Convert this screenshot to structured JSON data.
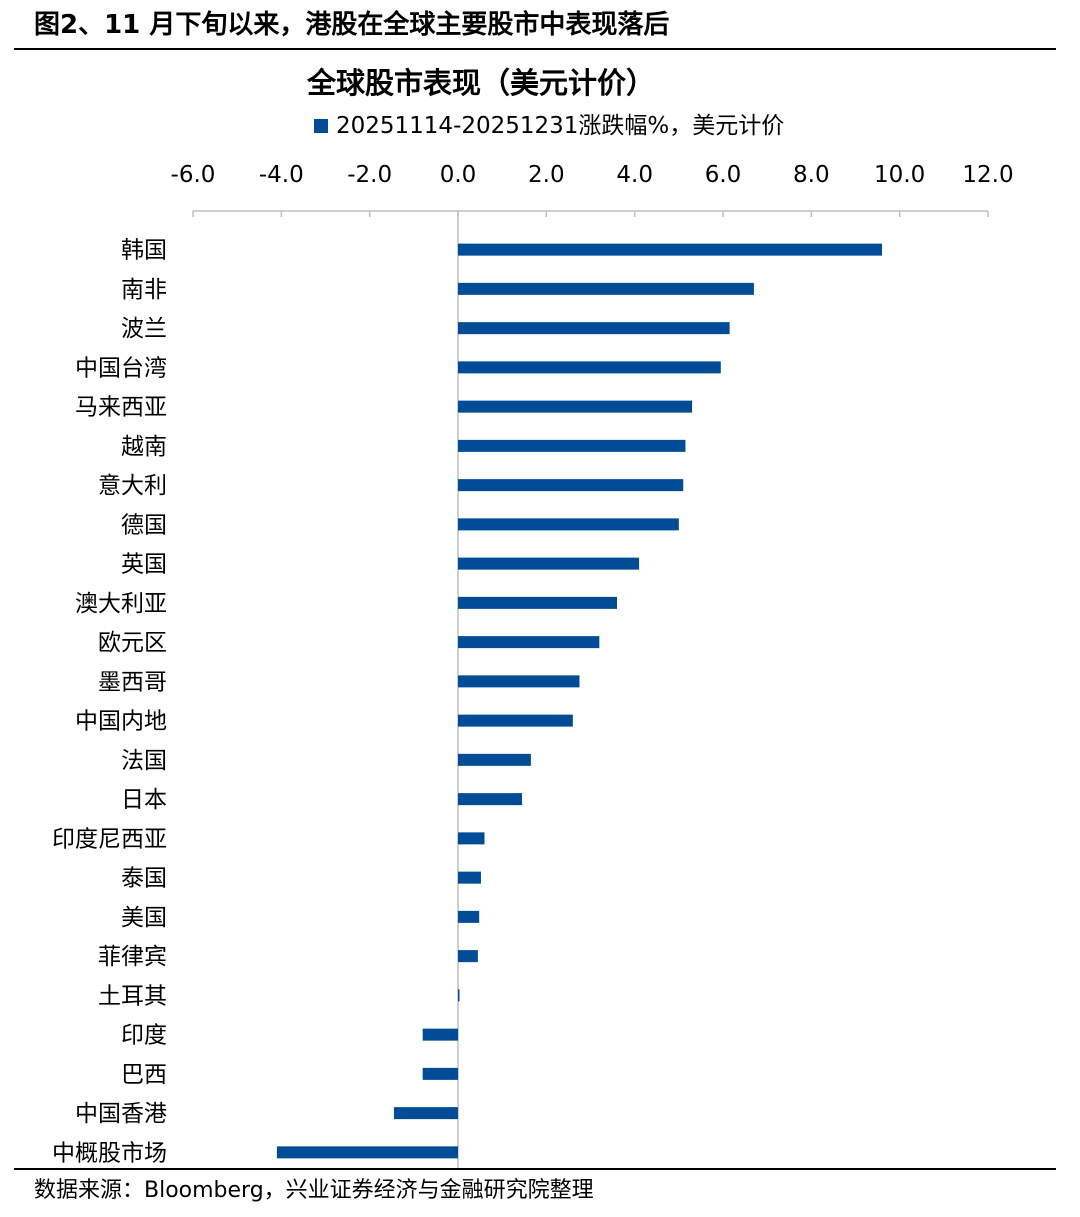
{
  "figure_title": "图2、11 月下旬以来，港股在全球主要股市中表现落后",
  "source_text": "数据来源：Bloomberg，兴业证券经济与金融研究院整理",
  "colors": {
    "bar": "#004C97",
    "axis": "#BFBFBF",
    "text": "#000000"
  },
  "chart_data": {
    "type": "bar",
    "orientation": "horizontal",
    "title": "全球股市表现（美元计价）",
    "legend_label": "20251114-20251231涨跌幅%，美元计价",
    "legend_position": "top",
    "xlim": [
      -6,
      12
    ],
    "xticks": [
      -6,
      -4,
      -2,
      0,
      2,
      4,
      6,
      8,
      10,
      12
    ],
    "xtick_labels": [
      "-6.0",
      "-4.0",
      "-2.0",
      "0.0",
      "2.0",
      "4.0",
      "6.0",
      "8.0",
      "10.0",
      "12.0"
    ],
    "x_axis_position": "top",
    "grid": false,
    "categories": [
      "韩国",
      "南非",
      "波兰",
      "中国台湾",
      "马来西亚",
      "越南",
      "意大利",
      "德国",
      "英国",
      "澳大利亚",
      "欧元区",
      "墨西哥",
      "中国内地",
      "法国",
      "日本",
      "印度尼西亚",
      "泰国",
      "美国",
      "菲律宾",
      "土耳其",
      "印度",
      "巴西",
      "中国香港",
      "中概股市场"
    ],
    "series": [
      {
        "name": "20251114-20251231涨跌幅%，美元计价",
        "values": [
          9.6,
          6.7,
          6.15,
          5.95,
          5.3,
          5.15,
          5.1,
          5.0,
          4.1,
          3.6,
          3.2,
          2.75,
          2.6,
          1.65,
          1.45,
          0.6,
          0.52,
          0.48,
          0.45,
          0.03,
          -0.8,
          -0.8,
          -1.45,
          -4.1
        ]
      }
    ]
  }
}
